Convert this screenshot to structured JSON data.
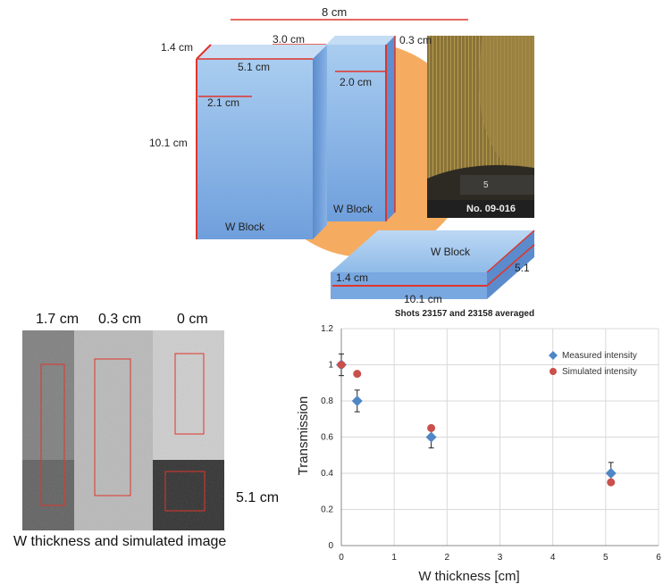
{
  "top_diagram": {
    "dims": {
      "top_width": "8 cm",
      "depth_left": "1.4 cm",
      "front_depth": "3.0 cm",
      "gap_right": "0.3 cm",
      "block1_width": "5.1 cm",
      "block2_width": "2.0 cm",
      "inner_depth": "2.1 cm",
      "height": "10.1 cm",
      "flat_depth": "1.4 cm",
      "flat_length": "10.1 cm",
      "flat_side": "5.1",
      "ruler_text": "No. 09-016",
      "ruler_tick": "5"
    },
    "block_labels": [
      "W Block",
      "W Block",
      "W Block"
    ],
    "colors": {
      "block_face": "#8cbbe6",
      "block_dark": "#5d8fd0",
      "block_top": "#b7d6f2",
      "edge": "#e0352b",
      "disk": "#f5ac61"
    }
  },
  "sim_image": {
    "column_labels": [
      "1.7 cm",
      "0.3 cm",
      "0 cm"
    ],
    "side_label": "5.1 cm",
    "caption": "W thickness and simulated image"
  },
  "chart_data": {
    "type": "scatter",
    "title": "Shots 23157 and 23158 averaged",
    "xlabel": "W thickness [cm]",
    "ylabel": "Transmission",
    "xlim": [
      0,
      6
    ],
    "ylim": [
      0,
      1.2
    ],
    "x_ticks": [
      "0",
      "1",
      "2",
      "3",
      "4",
      "5",
      "6"
    ],
    "y_ticks": [
      "0",
      "0.2",
      "0.4",
      "0.6",
      "0.8",
      "1",
      "1.2"
    ],
    "grid": true,
    "legend": "top-right",
    "series": [
      {
        "name": "Measured intensity",
        "color": "#4f86c6",
        "marker": "diamond",
        "x": [
          0,
          0.3,
          1.7,
          5.1
        ],
        "y": [
          1.0,
          0.8,
          0.6,
          0.4
        ],
        "error": [
          0.06,
          0.06,
          0.06,
          0.06
        ]
      },
      {
        "name": "Simulated intensity",
        "color": "#c9504b",
        "marker": "circle",
        "x": [
          0,
          0.3,
          1.7,
          5.1
        ],
        "y": [
          1.0,
          0.95,
          0.65,
          0.35
        ]
      }
    ]
  }
}
